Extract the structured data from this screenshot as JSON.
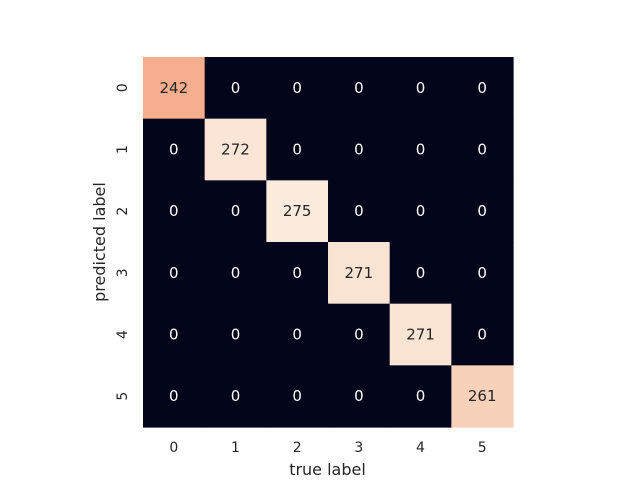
{
  "chart_data": {
    "type": "heatmap",
    "title": "",
    "xlabel": "true label",
    "ylabel": "predicted label",
    "x_categories": [
      "0",
      "1",
      "2",
      "3",
      "4",
      "5"
    ],
    "y_categories": [
      "0",
      "1",
      "2",
      "3",
      "4",
      "5"
    ],
    "values": [
      [
        242,
        0,
        0,
        0,
        0,
        0
      ],
      [
        0,
        272,
        0,
        0,
        0,
        0
      ],
      [
        0,
        0,
        275,
        0,
        0,
        0
      ],
      [
        0,
        0,
        0,
        271,
        0,
        0
      ],
      [
        0,
        0,
        0,
        0,
        271,
        0
      ],
      [
        0,
        0,
        0,
        0,
        0,
        261
      ]
    ],
    "value_range": [
      0,
      275
    ],
    "colormap": "rocket",
    "colorbar": false,
    "annotations": true,
    "grid": false
  }
}
